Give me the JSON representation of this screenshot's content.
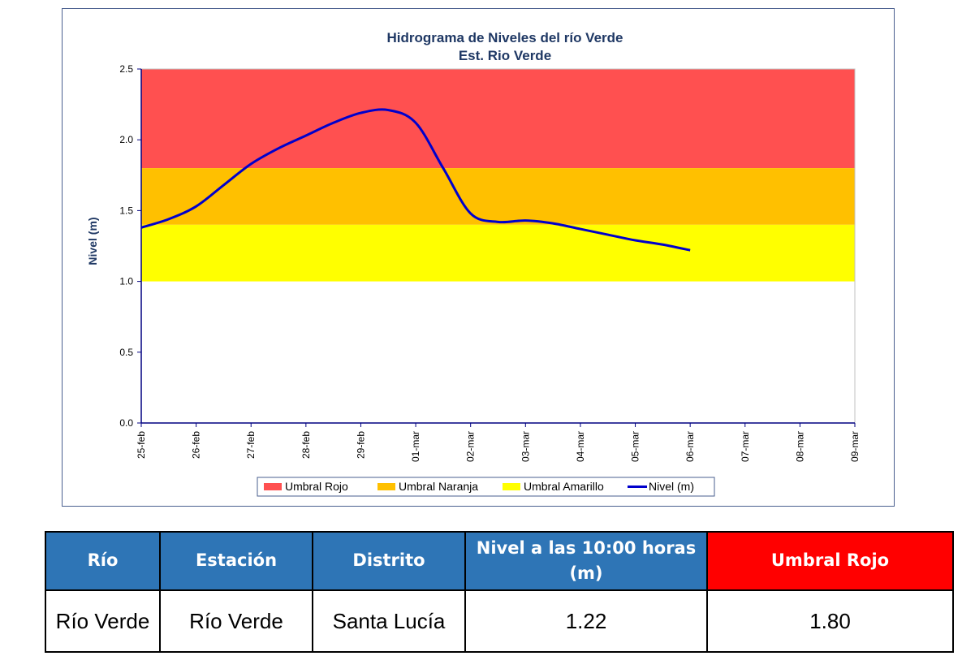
{
  "chart_data": {
    "type": "line",
    "title": "Hidrograma de Niveles del río Verde",
    "subtitle": "Est. Rio Verde",
    "ylabel": "Nivel (m)",
    "xlabel": "",
    "ylim": [
      0,
      2.5
    ],
    "yticks": [
      "0.0",
      "0.5",
      "1.0",
      "1.5",
      "2.0",
      "2.5"
    ],
    "categories": [
      "25-feb",
      "26-feb",
      "27-feb",
      "28-feb",
      "29-feb",
      "01-mar",
      "02-mar",
      "03-mar",
      "04-mar",
      "05-mar",
      "06-mar",
      "07-mar",
      "08-mar",
      "09-mar"
    ],
    "bands": [
      {
        "name": "Umbral Rojo",
        "from": 1.8,
        "to": 2.5,
        "color": "#ff5050"
      },
      {
        "name": "Umbral Naranja",
        "from": 1.4,
        "to": 1.8,
        "color": "#ffc000"
      },
      {
        "name": "Umbral Amarillo",
        "from": 1.0,
        "to": 1.4,
        "color": "#ffff00"
      }
    ],
    "series": [
      {
        "name": "Nivel (m)",
        "color": "#0000cc",
        "x": [
          0,
          0.5,
          1,
          1.5,
          2,
          2.5,
          3,
          3.5,
          4,
          4.5,
          5,
          5.5,
          6,
          6.5,
          7,
          7.5,
          8,
          8.5,
          9,
          9.5,
          10
        ],
        "values": [
          1.38,
          1.44,
          1.53,
          1.68,
          1.83,
          1.94,
          2.03,
          2.12,
          2.19,
          2.21,
          2.12,
          1.8,
          1.48,
          1.42,
          1.43,
          1.41,
          1.37,
          1.33,
          1.29,
          1.26,
          1.22
        ]
      }
    ],
    "legend": "bottom",
    "grid": false
  },
  "table": {
    "headers": [
      "Río",
      "Estación",
      "Distrito",
      "Nivel a las 10:00 horas (m)",
      "Umbral Rojo"
    ],
    "row": [
      "Río Verde",
      "Río Verde",
      "Santa Lucía",
      "1.22",
      "1.80"
    ]
  }
}
